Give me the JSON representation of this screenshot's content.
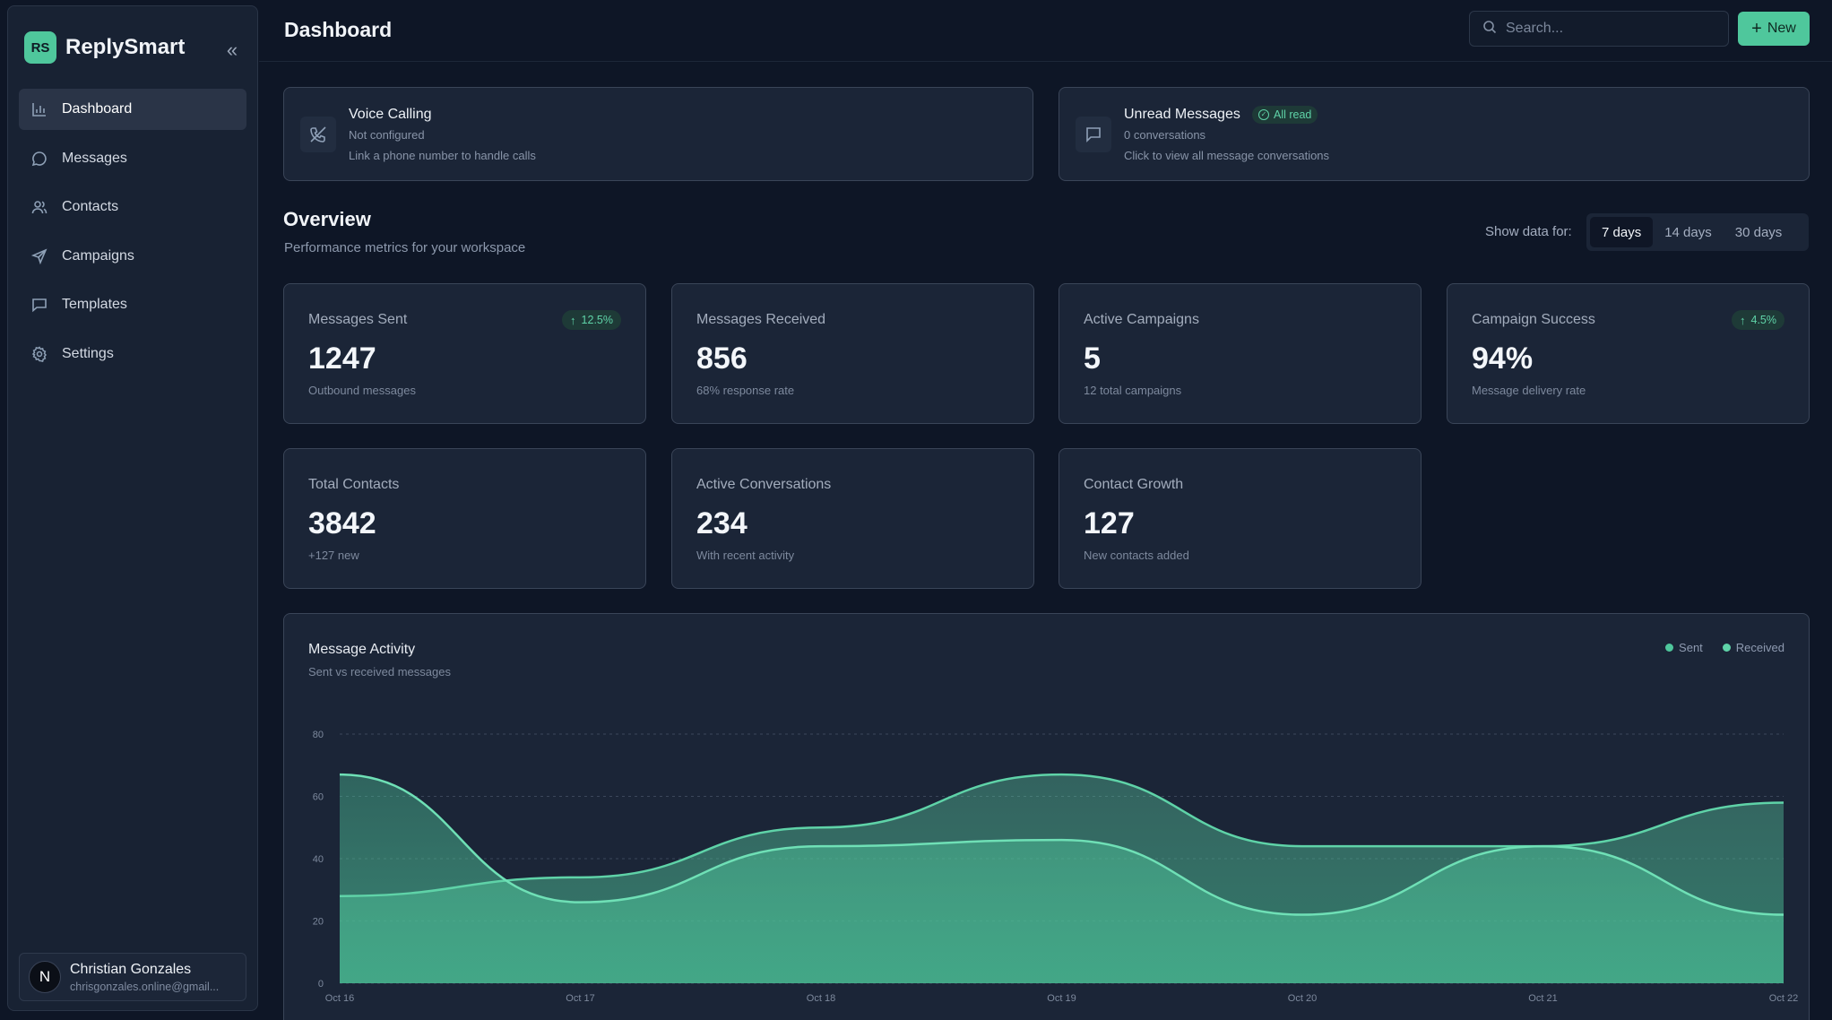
{
  "app": {
    "logo": "RS",
    "name": "ReplySmart",
    "collapse_icon": "«"
  },
  "sidebar": {
    "items": [
      {
        "label": "Dashboard",
        "icon": "bar-chart-icon",
        "active": true
      },
      {
        "label": "Messages",
        "icon": "chat-bubble-icon"
      },
      {
        "label": "Contacts",
        "icon": "users-icon"
      },
      {
        "label": "Campaigns",
        "icon": "send-icon"
      },
      {
        "label": "Templates",
        "icon": "message-square-icon"
      },
      {
        "label": "Settings",
        "icon": "gear-icon"
      }
    ],
    "user": {
      "initial": "N",
      "name": "Christian Gonzales",
      "email": "chrisgonzales.online@gmail..."
    }
  },
  "header": {
    "title": "Dashboard",
    "search_placeholder": "Search...",
    "new_label": "New"
  },
  "banners": {
    "voice": {
      "title": "Voice Calling",
      "subtitle": "Not configured",
      "description": "Link a phone number to handle calls"
    },
    "unread": {
      "title": "Unread Messages",
      "badge": "All read",
      "subtitle": "0 conversations",
      "description": "Click to view all message conversations"
    }
  },
  "overview": {
    "title": "Overview",
    "subtitle": "Performance metrics for your workspace",
    "range_label": "Show data for:",
    "ranges": [
      "7 days",
      "14 days",
      "30 days"
    ],
    "selected_range": "7 days"
  },
  "stats": [
    {
      "label": "Messages Sent",
      "value": "1247",
      "sub": "Outbound messages",
      "trend": "12.5%"
    },
    {
      "label": "Messages Received",
      "value": "856",
      "sub": "68% response rate"
    },
    {
      "label": "Active Campaigns",
      "value": "5",
      "sub": "12 total campaigns"
    },
    {
      "label": "Campaign Success",
      "value": "94%",
      "sub": "Message delivery rate",
      "trend": "4.5%"
    },
    {
      "label": "Total Contacts",
      "value": "3842",
      "sub": "+127 new"
    },
    {
      "label": "Active Conversations",
      "value": "234",
      "sub": "With recent activity"
    },
    {
      "label": "Contact Growth",
      "value": "127",
      "sub": "New contacts added"
    }
  ],
  "colors": {
    "accent": "#4fc79c",
    "sent": "#4fc79c",
    "received": "#5fd3a8",
    "bg": "#0e1626",
    "card": "#1b2537"
  },
  "chart_data": {
    "type": "area",
    "title": "Message Activity",
    "subtitle": "Sent vs received messages",
    "x": [
      "Oct 16",
      "Oct 17",
      "Oct 18",
      "Oct 19",
      "Oct 20",
      "Oct 21",
      "Oct 22"
    ],
    "series": [
      {
        "name": "Sent",
        "values": [
          67,
          26,
          44,
          46,
          22,
          44,
          22
        ]
      },
      {
        "name": "Received",
        "values": [
          28,
          34,
          50,
          67,
          44,
          44,
          58
        ]
      }
    ],
    "ylim": [
      0,
      80
    ],
    "yticks": [
      0,
      20,
      40,
      60,
      80
    ],
    "grid": true,
    "legend_position": "top-right"
  }
}
